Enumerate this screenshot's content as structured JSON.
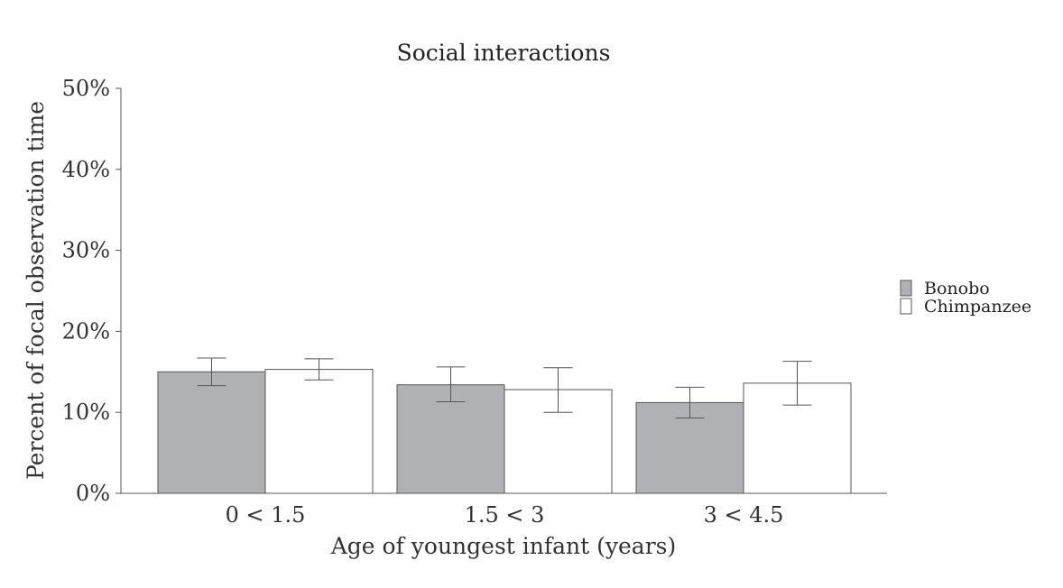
{
  "chart_data": {
    "type": "bar",
    "title": "Social interactions",
    "xlabel": "Age of youngest infant (years)",
    "ylabel": "Percent of focal observation time",
    "categories": [
      "0 < 1.5",
      "1.5 < 3",
      "3 < 4.5"
    ],
    "ylim": [
      0,
      50
    ],
    "yticks": [
      0,
      10,
      20,
      30,
      40,
      50
    ],
    "ytick_labels": [
      "0%",
      "10%",
      "20%",
      "30%",
      "40%",
      "50%"
    ],
    "grid": false,
    "legend_position": "right",
    "series": [
      {
        "name": "Bonobo",
        "color": "#b0b1b5",
        "values": [
          15.0,
          13.4,
          11.2
        ],
        "err_low": [
          13.3,
          11.3,
          9.3
        ],
        "err_high": [
          16.7,
          15.6,
          13.1
        ]
      },
      {
        "name": "Chimpanzee",
        "color": "#ffffff",
        "values": [
          15.3,
          12.8,
          13.6
        ],
        "err_low": [
          14.0,
          10.0,
          10.9
        ],
        "err_high": [
          16.6,
          15.5,
          16.3
        ]
      }
    ]
  }
}
